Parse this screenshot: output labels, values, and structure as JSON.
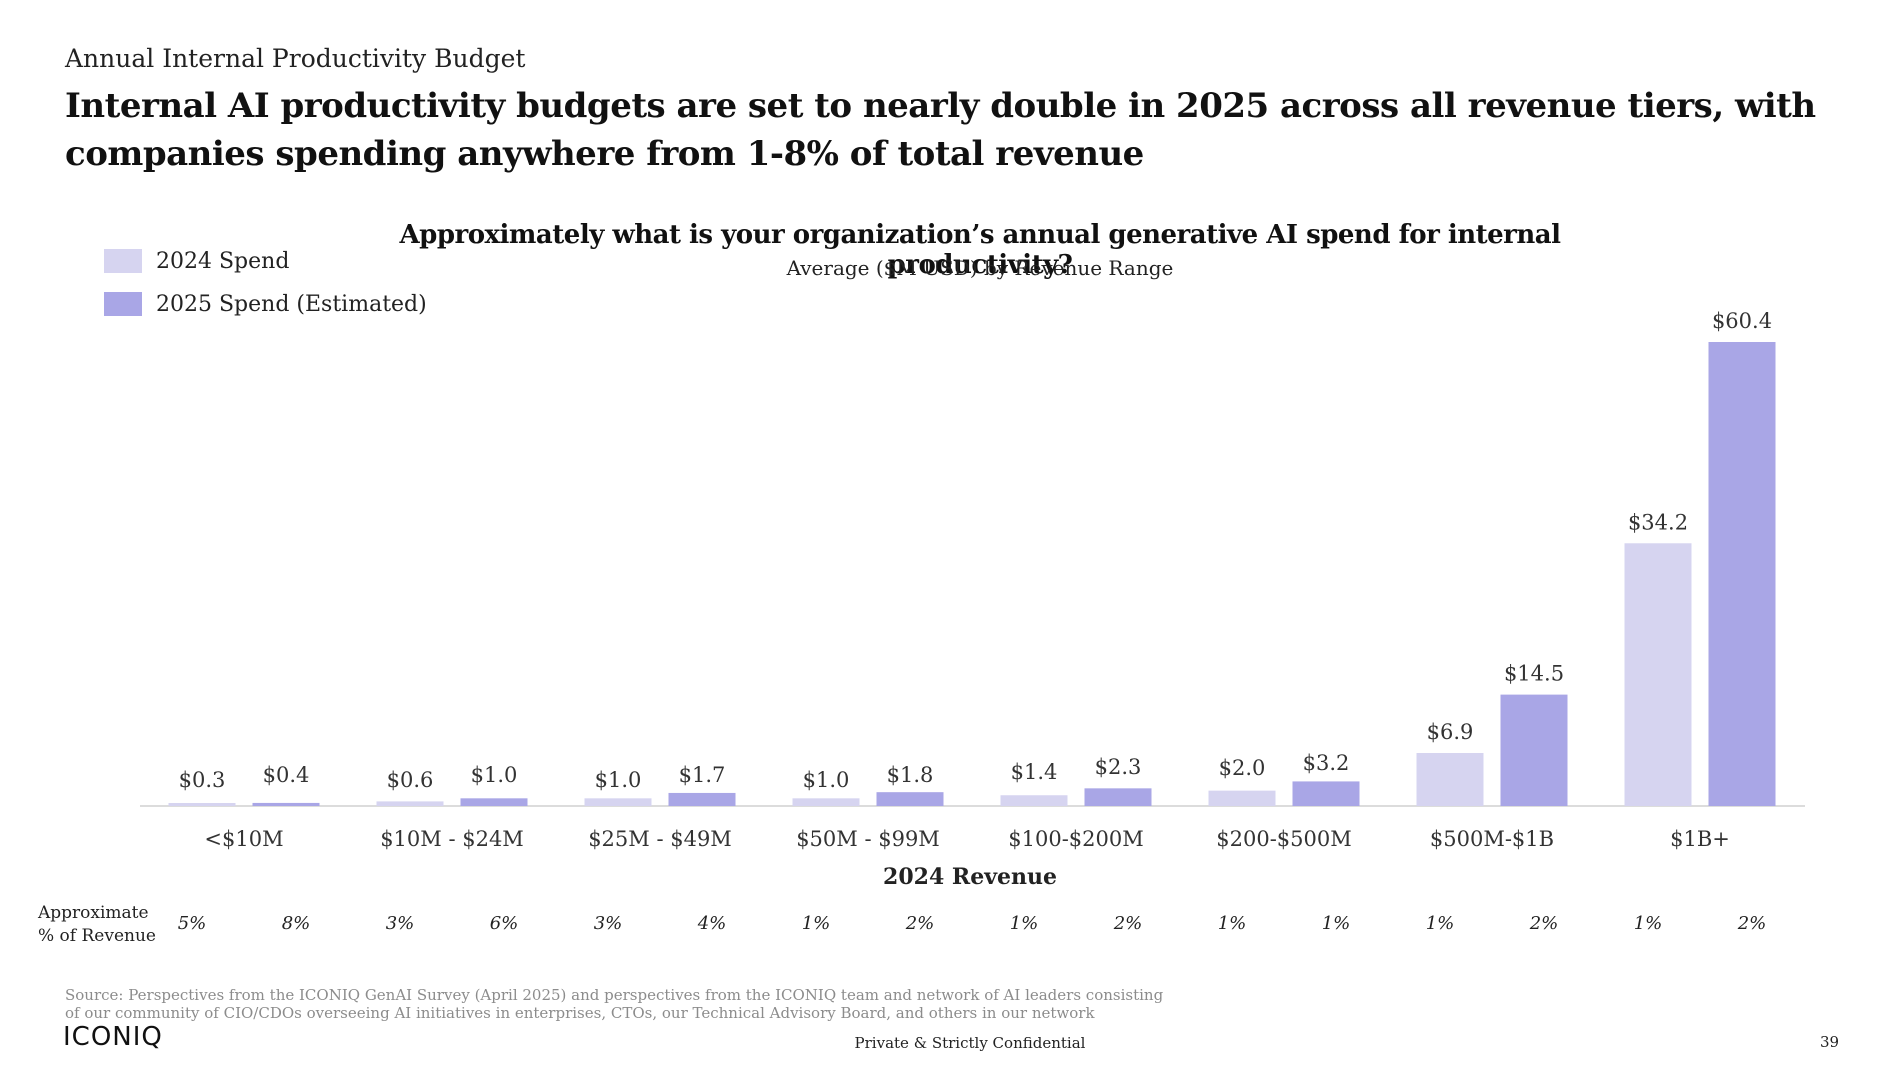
{
  "header": {
    "kicker": "Annual Internal Productivity Budget",
    "headline": "Internal AI productivity budgets are set to nearly double in 2025 across all revenue tiers, with companies spending anywhere from 1-8% of total revenue"
  },
  "colors": {
    "spend_2024": "#d6d4f0",
    "spend_2025": "#a9a6e6",
    "axis": "#d0d0d0"
  },
  "chart_data": {
    "type": "bar",
    "title": "Approximately what is your organization’s annual generative AI spend for internal productivity?",
    "subtitle": "Average ($M USD) by Revenue Range",
    "xlabel": "2024 Revenue",
    "ylabel": "",
    "legend_placement": "top-left",
    "grid": false,
    "ylim": [
      0,
      60.4
    ],
    "categories": [
      "<$10M",
      "$10M - $24M",
      "$25M - $49M",
      "$50M - $99M",
      "$100-$200M",
      "$200-$500M",
      "$500M-$1B",
      "$1B+"
    ],
    "series": [
      {
        "name": "2024 Spend",
        "values": [
          0.3,
          0.6,
          1.0,
          1.0,
          1.4,
          2.0,
          6.9,
          34.2
        ],
        "labels": [
          "$0.3",
          "$0.6",
          "$1.0",
          "$1.0",
          "$1.4",
          "$2.0",
          "$6.9",
          "$34.2"
        ],
        "pct_of_revenue": [
          "5%",
          "3%",
          "3%",
          "1%",
          "1%",
          "1%",
          "1%",
          "1%"
        ]
      },
      {
        "name": "2025 Spend (Estimated)",
        "values": [
          0.4,
          1.0,
          1.7,
          1.8,
          2.3,
          3.2,
          14.5,
          60.4
        ],
        "labels": [
          "$0.4",
          "$1.0",
          "$1.7",
          "$1.8",
          "$2.3",
          "$3.2",
          "$14.5",
          "$60.4"
        ],
        "pct_of_revenue": [
          "8%",
          "6%",
          "4%",
          "2%",
          "2%",
          "1%",
          "2%",
          "2%"
        ]
      }
    ],
    "pct_row_label_line1": "Approximate",
    "pct_row_label_line2": "% of Revenue"
  },
  "footer": {
    "source": "Source: Perspectives from the ICONIQ GenAI Survey (April 2025) and perspectives from the ICONIQ team and network of AI leaders consisting of our community of CIO/CDOs overseeing AI initiatives in enterprises, CTOs, our Technical Advisory Board, and others in our network",
    "logo_text": "ICONIQ",
    "confidential": "Private & Strictly Confidential",
    "page_number": "39"
  }
}
